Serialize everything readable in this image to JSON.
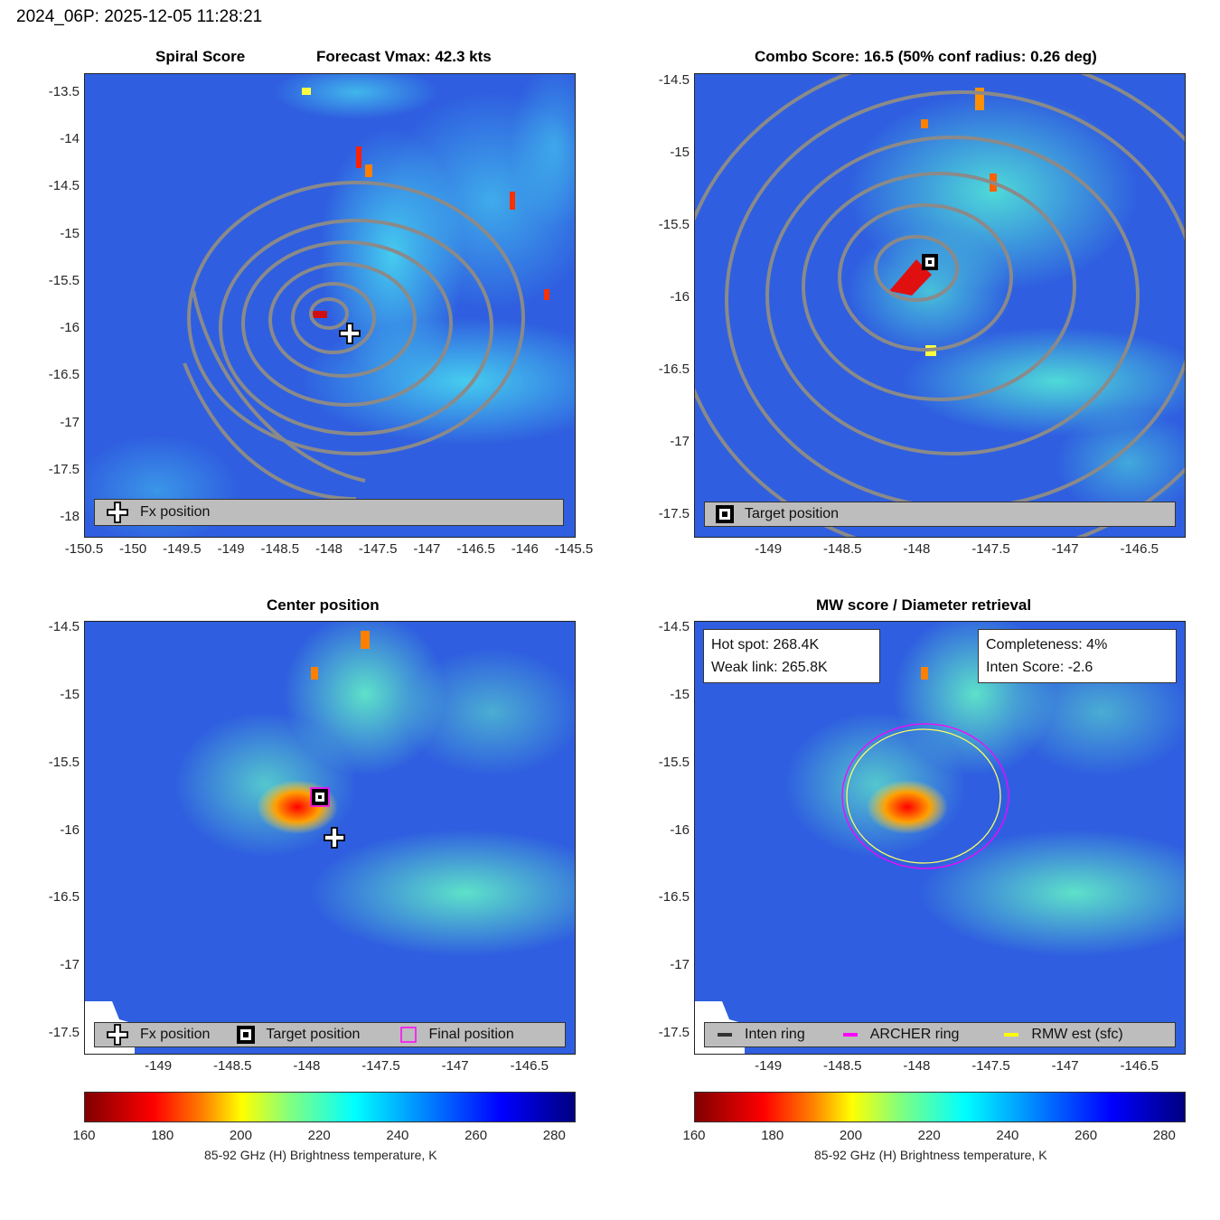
{
  "figure_title": "2024_06P: 2025-12-05 11:28:21",
  "colors": {
    "contour": "#8a8a8a",
    "background_field": "#2a5be8",
    "archer_ring": "#ff00ff",
    "rmw_ring": "#ffff00",
    "inten_ring": "#333333",
    "legend_bg": "#bdbdbd"
  },
  "panels": {
    "spiral": {
      "title_left": "Spiral Score",
      "title_right": "Forecast Vmax: 42.3 kts",
      "yticks": [
        "-13.5",
        "-14",
        "-14.5",
        "-15",
        "-15.5",
        "-16",
        "-16.5",
        "-17",
        "-17.5",
        "-18"
      ],
      "xticks": [
        "-150.5",
        "-150",
        "-149.5",
        "-149",
        "-148.5",
        "-148",
        "-147.5",
        "-147",
        "-146.5",
        "-146",
        "-145.5"
      ],
      "legend": [
        {
          "icon": "plus-icon",
          "label": "Fx position"
        }
      ]
    },
    "combo": {
      "title": "Combo Score: 16.5  (50% conf radius: 0.26 deg)",
      "yticks": [
        "-14.5",
        "-15",
        "-15.5",
        "-16",
        "-16.5",
        "-17",
        "-17.5"
      ],
      "xticks": [
        "-149",
        "-148.5",
        "-148",
        "-147.5",
        "-147",
        "-146.5"
      ],
      "legend": [
        {
          "icon": "square-marker-icon",
          "label": "Target position"
        }
      ]
    },
    "center": {
      "title": "Center position",
      "yticks": [
        "-14.5",
        "-15",
        "-15.5",
        "-16",
        "-16.5",
        "-17",
        "-17.5"
      ],
      "xticks": [
        "-149",
        "-148.5",
        "-148",
        "-147.5",
        "-147",
        "-146.5"
      ],
      "legend": [
        {
          "icon": "plus-icon",
          "label": "Fx position"
        },
        {
          "icon": "square-marker-icon",
          "label": "Target position"
        },
        {
          "icon": "magenta-square-icon",
          "label": "Final position"
        }
      ]
    },
    "mw": {
      "title": "MW score / Diameter retrieval",
      "yticks": [
        "-14.5",
        "-15",
        "-15.5",
        "-16",
        "-16.5",
        "-17",
        "-17.5"
      ],
      "xticks": [
        "-149",
        "-148.5",
        "-148",
        "-147.5",
        "-147",
        "-146.5"
      ],
      "info_left": [
        "Hot spot: 268.4K",
        "Weak link: 265.8K"
      ],
      "info_right": [
        "Completeness: 4%",
        "Inten Score: -2.6"
      ],
      "legend": [
        {
          "icon": "dark-line-icon",
          "label": "Inten ring"
        },
        {
          "icon": "magenta-line-icon",
          "label": "ARCHER ring"
        },
        {
          "icon": "yellow-line-icon",
          "label": "RMW est (sfc)"
        }
      ]
    }
  },
  "colorbar": {
    "ticks": [
      "160",
      "180",
      "200",
      "220",
      "240",
      "260",
      "280"
    ],
    "label": "85-92 GHz (H) Brightness temperature, K"
  },
  "chart_data": [
    {
      "type": "heatmap",
      "title": "Spiral Score",
      "subtitle": "Forecast Vmax: 42.3 kts",
      "xlim": [
        -150.5,
        -145.5
      ],
      "ylim": [
        -18.2,
        -13.3
      ],
      "fx_position": {
        "lon": -147.8,
        "lat": -16.05
      }
    },
    {
      "type": "heatmap",
      "title": "Combo Score: 16.5  (50% conf radius: 0.26 deg)",
      "xlim": [
        -149.5,
        -146.2
      ],
      "ylim": [
        -17.65,
        -14.45
      ],
      "target_position": {
        "lon": -147.92,
        "lat": -15.75
      }
    },
    {
      "type": "heatmap",
      "title": "Center position",
      "xlim": [
        -149.5,
        -146.2
      ],
      "ylim": [
        -17.65,
        -14.45
      ],
      "fx_position": {
        "lon": -147.82,
        "lat": -16.05
      },
      "target_position": {
        "lon": -147.92,
        "lat": -15.75
      },
      "final_position": {
        "lon": -147.92,
        "lat": -15.75
      }
    },
    {
      "type": "heatmap",
      "title": "MW score / Diameter retrieval",
      "xlim": [
        -149.5,
        -146.2
      ],
      "ylim": [
        -17.65,
        -14.45
      ],
      "hot_spot_K": 268.4,
      "weak_link_K": 265.8,
      "completeness_pct": 4,
      "inten_score": -2.6,
      "ring_center": {
        "lon": -147.95,
        "lat": -15.78
      }
    }
  ]
}
